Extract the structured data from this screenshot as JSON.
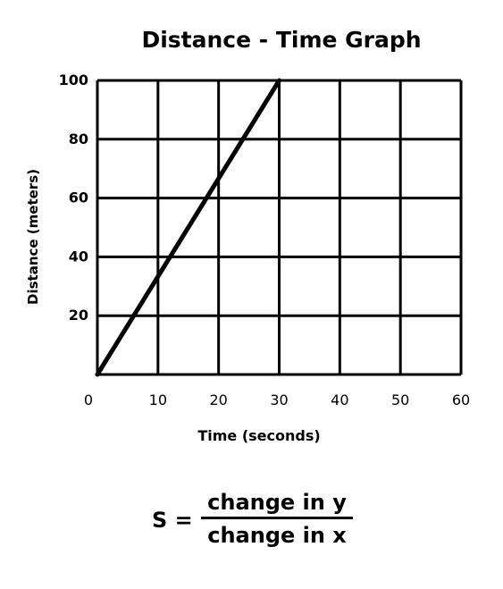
{
  "chart_data": {
    "type": "line",
    "title": "Distance - Time Graph",
    "xlabel": "Time (seconds)",
    "ylabel": "Distance (meters)",
    "xlim": [
      0,
      60
    ],
    "ylim": [
      0,
      100
    ],
    "x_ticks": [
      "0",
      "10",
      "20",
      "30",
      "40",
      "50",
      "60"
    ],
    "y_ticks": [
      "20",
      "40",
      "60",
      "80",
      "100"
    ],
    "grid": true,
    "series": [
      {
        "x": [
          0,
          30
        ],
        "y": [
          0,
          100
        ]
      }
    ],
    "line_color": "#000000"
  },
  "formula": {
    "lhs": "S =",
    "numerator": "change in y",
    "denominator": "change in x"
  }
}
